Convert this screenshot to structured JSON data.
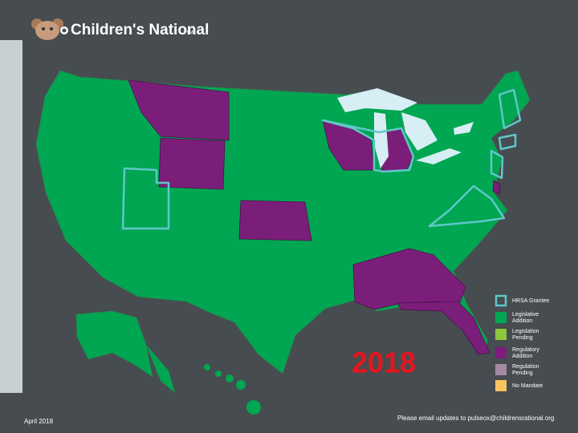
{
  "header": {
    "logo": "Children's National",
    "trademark": "TM"
  },
  "map": {
    "year": "2018",
    "legend": [
      {
        "label": [
          "HRSA Grantee"
        ],
        "color": "#5fc8c8",
        "style": "outline"
      },
      {
        "label": [
          "Legislative",
          "Addition"
        ],
        "color": "#00a651",
        "style": "fill"
      },
      {
        "label": [
          "Legislation",
          "Pending"
        ],
        "color": "#8dc63f",
        "style": "fill"
      },
      {
        "label": [
          "Regulatory",
          "Addition"
        ],
        "color": "#7b1e7a",
        "style": "fill"
      },
      {
        "label": [
          "Regulation",
          "Pending"
        ],
        "color": "#a58aa5",
        "style": "fill"
      },
      {
        "label": [
          "No Mandate"
        ],
        "color": "#f7c35f",
        "style": "fill"
      }
    ]
  },
  "footer": {
    "date": "April 2018",
    "note": "Please email updates to pulseox@childrensrational.org"
  }
}
